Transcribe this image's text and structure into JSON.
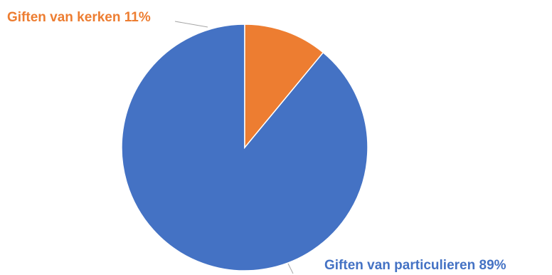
{
  "chart_data": {
    "type": "pie",
    "slices": [
      {
        "label": "Giften van particulieren 89%",
        "value": 89,
        "color": "#4472C4"
      },
      {
        "label": "Giften van kerken 11%",
        "value": 11,
        "color": "#ED7D31"
      }
    ],
    "start_angle": "12 o'clock",
    "direction": "counter-clockwise",
    "legend": "none",
    "labels": "outside with leader lines"
  }
}
